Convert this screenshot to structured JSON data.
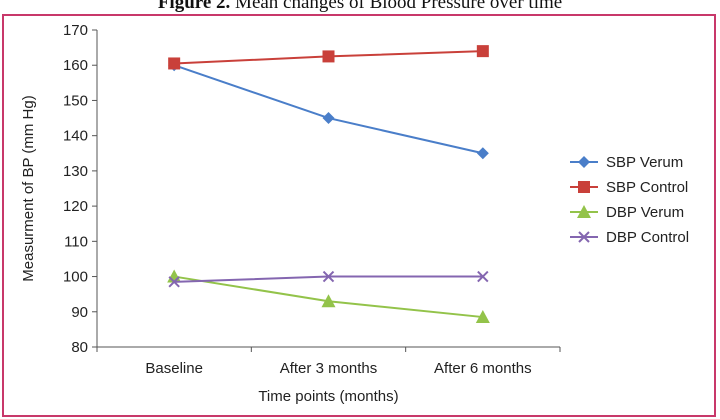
{
  "figure": {
    "label": "Figure 2.",
    "caption": "Mean changes of Blood Pressure over time"
  },
  "colors": {
    "frame": "#c8386a",
    "sbp_verum": "#4a7ec9",
    "sbp_control": "#c9403a",
    "dbp_verum": "#93c34a",
    "dbp_control": "#8466b0"
  },
  "chart_data": {
    "type": "line",
    "title": "",
    "xlabel": "Time points (months)",
    "ylabel": "Measurment of BP (mm Hg)",
    "categories": [
      "Baseline",
      "After 3 months",
      "After 6 months"
    ],
    "ylim": [
      80,
      170
    ],
    "yticks": [
      80,
      90,
      100,
      110,
      120,
      130,
      140,
      150,
      160,
      170
    ],
    "grid": false,
    "legend_position": "right",
    "series": [
      {
        "name": "SBP Verum",
        "values": [
          160,
          145,
          135
        ],
        "color": "#4a7ec9",
        "marker": "diamond"
      },
      {
        "name": "SBP Control",
        "values": [
          160.5,
          162.5,
          164
        ],
        "color": "#c9403a",
        "marker": "square"
      },
      {
        "name": "DBP Verum",
        "values": [
          100,
          93,
          88.5
        ],
        "color": "#93c34a",
        "marker": "triangle"
      },
      {
        "name": "DBP Control",
        "values": [
          98.5,
          100,
          100
        ],
        "color": "#8466b0",
        "marker": "x"
      }
    ]
  }
}
